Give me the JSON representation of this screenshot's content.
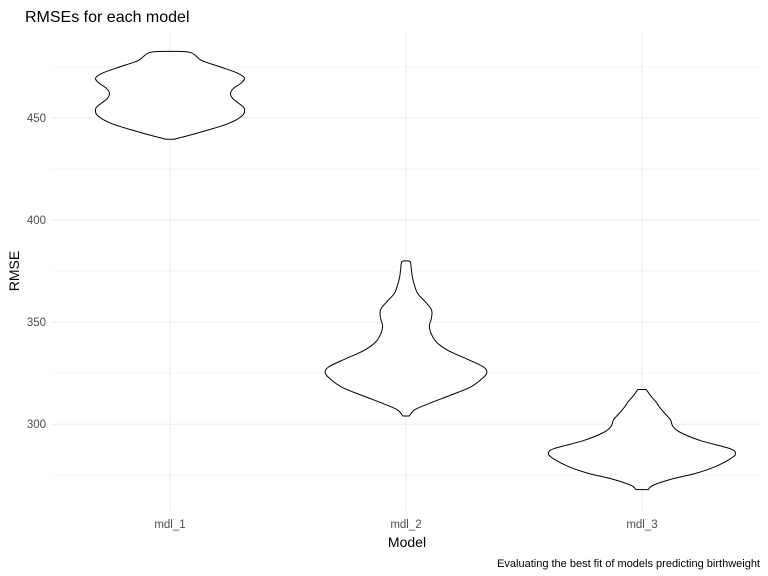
{
  "chart_data": {
    "type": "violin",
    "title": "RMSEs for each model",
    "xlabel": "Model",
    "ylabel": "RMSE",
    "caption": "Evaluating the best fit of models predicting birthweight",
    "categories": [
      "mdl_1",
      "mdl_2",
      "mdl_3"
    ],
    "ylim": [
      258,
      492
    ],
    "y_ticks": [
      300,
      350,
      400,
      450
    ],
    "grid": true,
    "legend": "none",
    "violins": [
      {
        "category": "mdl_1",
        "min": 439.5,
        "max": 482.5,
        "density": [
          [
            439.5,
            0.04
          ],
          [
            443,
            0.29
          ],
          [
            447,
            0.54
          ],
          [
            451,
            0.68
          ],
          [
            454.5,
            0.7
          ],
          [
            457,
            0.65
          ],
          [
            459.5,
            0.59
          ],
          [
            462,
            0.57
          ],
          [
            464.5,
            0.6
          ],
          [
            467,
            0.67
          ],
          [
            469.5,
            0.7
          ],
          [
            472,
            0.63
          ],
          [
            475,
            0.47
          ],
          [
            478,
            0.3
          ],
          [
            482,
            0.19
          ],
          [
            482.5,
            0.0
          ]
        ]
      },
      {
        "category": "mdl_2",
        "min": 304,
        "max": 380,
        "density": [
          [
            304,
            0.03
          ],
          [
            307,
            0.08
          ],
          [
            310,
            0.21
          ],
          [
            314,
            0.41
          ],
          [
            318,
            0.6
          ],
          [
            322,
            0.71
          ],
          [
            325,
            0.76
          ],
          [
            328,
            0.73
          ],
          [
            332,
            0.57
          ],
          [
            336,
            0.4
          ],
          [
            340,
            0.29
          ],
          [
            344,
            0.24
          ],
          [
            348,
            0.22
          ],
          [
            352,
            0.24
          ],
          [
            356,
            0.24
          ],
          [
            360,
            0.18
          ],
          [
            364,
            0.11
          ],
          [
            368,
            0.08
          ],
          [
            372,
            0.06
          ],
          [
            376,
            0.05
          ],
          [
            379.5,
            0.04
          ],
          [
            380,
            0.0
          ]
        ]
      },
      {
        "category": "mdl_3",
        "min": 268,
        "max": 317,
        "density": [
          [
            268,
            0.06
          ],
          [
            270,
            0.1
          ],
          [
            273,
            0.27
          ],
          [
            276,
            0.51
          ],
          [
            279,
            0.68
          ],
          [
            283,
            0.83
          ],
          [
            285.5,
            0.88
          ],
          [
            288,
            0.83
          ],
          [
            292,
            0.55
          ],
          [
            296,
            0.36
          ],
          [
            299,
            0.29
          ],
          [
            302,
            0.27
          ],
          [
            305,
            0.22
          ],
          [
            308,
            0.17
          ],
          [
            311,
            0.13
          ],
          [
            314,
            0.08
          ],
          [
            317,
            0.04
          ]
        ]
      }
    ]
  }
}
